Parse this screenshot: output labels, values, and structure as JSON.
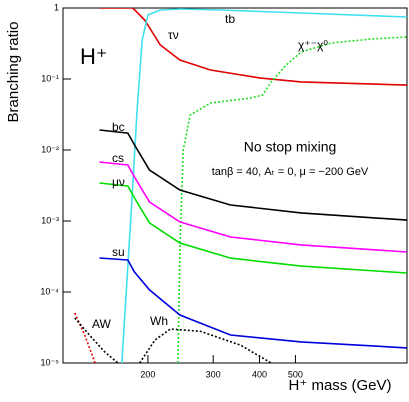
{
  "chart_data": {
    "type": "line",
    "ylabel": "Branching ratio",
    "xlabel": "H⁺ mass (GeV)",
    "annotations": [
      "H⁺",
      "No stop mixing",
      "tanβ = 40,  Aₜ = 0,  μ = −200 GeV"
    ],
    "xscale": "log",
    "yscale": "log",
    "xlim": [
      118,
      1000
    ],
    "ylim": [
      1e-05,
      1
    ],
    "xticks": [
      200,
      300,
      400,
      500
    ],
    "yticks": [
      1,
      {
        "value": 0.1,
        "label": "10⁻¹"
      },
      {
        "value": 0.01,
        "label": "10⁻²"
      },
      {
        "value": 0.001,
        "label": "10⁻³"
      },
      {
        "value": 0.0001,
        "label": "10⁻⁴"
      },
      {
        "value": 1e-05,
        "label": "10⁻⁵"
      }
    ],
    "series": [
      {
        "name": "τν",
        "color": "#e00000",
        "dashed": false,
        "x": [
          148,
          182,
          196,
          216,
          244,
          295,
          403,
          518,
          1000
        ],
        "values": [
          1,
          1,
          0.678,
          0.301,
          0.185,
          0.134,
          0.103,
          0.091,
          0.082
        ]
      },
      {
        "name": "tb",
        "color": "#40e0f0",
        "dashed": false,
        "x": [
          170,
          175,
          181,
          187,
          193,
          200,
          216,
          244,
          314,
          518,
          1000
        ],
        "values": [
          1e-05,
          0.000107,
          0.00198,
          0.0366,
          0.354,
          0.797,
          0.937,
          0.968,
          0.937,
          0.85,
          0.747
        ]
      },
      {
        "name": "χ⁺⁻χ⁰",
        "color": "#22dd22",
        "dashed": true,
        "x": [
          241,
          244,
          249,
          260,
          295,
          379,
          408,
          430,
          472,
          518,
          625,
          803,
          1000
        ],
        "values": [
          1e-05,
          0.00039,
          0.01,
          0.0311,
          0.0459,
          0.054,
          0.0595,
          0.0908,
          0.157,
          0.24,
          0.321,
          0.366,
          0.391
        ]
      },
      {
        "name": "bc",
        "color": "#000000",
        "dashed": false,
        "x": [
          148,
          176.5,
          184,
          202,
          244,
          334,
          518,
          1000
        ],
        "values": [
          0.0191,
          0.0173,
          0.0118,
          0.00523,
          0.00273,
          0.00168,
          0.0013,
          0.00103
        ]
      },
      {
        "name": "cs",
        "color": "#ff00ff",
        "dashed": false,
        "x": [
          148,
          176.5,
          184,
          202,
          244,
          334,
          518,
          1000
        ],
        "values": [
          0.00678,
          0.00615,
          0.00417,
          0.00185,
          0.00097,
          0.000596,
          0.00046,
          0.000366
        ]
      },
      {
        "name": "μν",
        "color": "#00dd00",
        "dashed": false,
        "x": [
          148,
          176.5,
          184,
          202,
          244,
          334,
          518,
          1000
        ],
        "values": [
          0.00343,
          0.00311,
          0.00211,
          0.00094,
          0.00049,
          0.0003,
          0.000232,
          0.000185
        ]
      },
      {
        "name": "su",
        "color": "#0000dd",
        "dashed": false,
        "x": [
          148,
          176.5,
          184,
          202,
          244,
          334,
          518,
          1000
        ],
        "values": [
          0.000301,
          0.000282,
          0.000191,
          0.000107,
          4.74e-05,
          2.48e-05,
          1.98e-05,
          1.63e-05
        ]
      },
      {
        "name": "AW",
        "color": "#e00000",
        "dashed": true,
        "x": [
          127,
          135,
          144
        ],
        "values": [
          5.06e-05,
          2.48e-05,
          1e-05
        ]
      },
      {
        "name": "Wh",
        "color": "#000000",
        "dashed": true,
        "x": [
          127,
          139,
          153,
          166,
          null,
          190,
          209,
          230,
          277,
          356,
          430
        ],
        "values": [
          4.3e-05,
          2.48e-05,
          1.43e-05,
          1e-05,
          null,
          1e-05,
          2.11e-05,
          3.01e-05,
          2.8e-05,
          1.78e-05,
          1e-05
        ]
      }
    ]
  }
}
